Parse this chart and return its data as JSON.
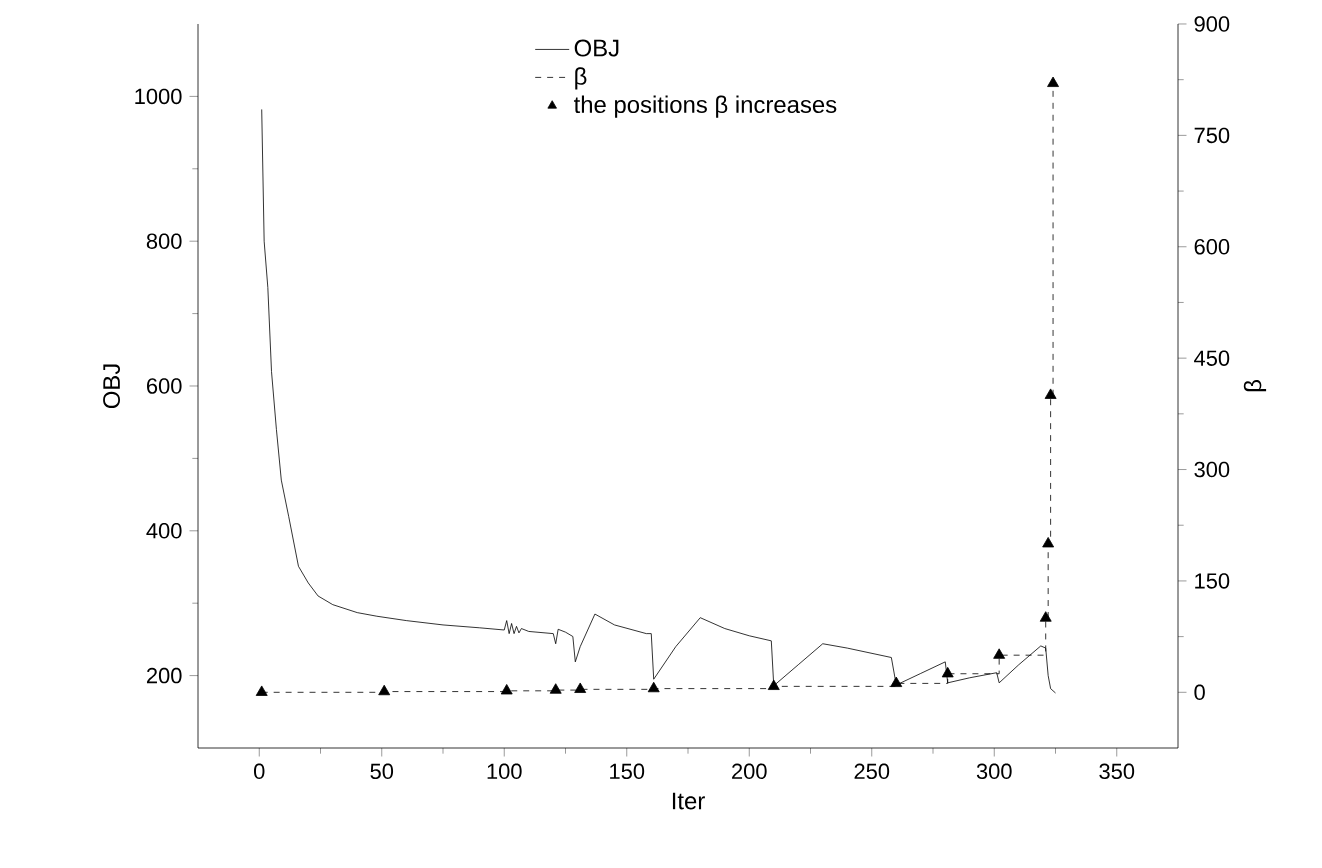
{
  "chart_data": {
    "type": "line",
    "xlabel": "Iter",
    "ylabel": "OBJ",
    "y2label": "β",
    "legend": "top",
    "xlim": [
      -25,
      375
    ],
    "xticks": [
      0,
      50,
      100,
      150,
      200,
      250,
      300,
      350
    ],
    "ylim": [
      100,
      1100
    ],
    "yticks": [
      200,
      400,
      600,
      800,
      1000
    ],
    "y2lim": [
      -75,
      900
    ],
    "y2ticks": [
      0,
      150,
      300,
      450,
      600,
      750,
      900
    ],
    "series": [
      {
        "name": "OBJ",
        "type": "line",
        "color": "#000000",
        "line_style": "solid",
        "marker": "none",
        "x": [
          1,
          2,
          3.5,
          5,
          7,
          9,
          12,
          16,
          20,
          24,
          30,
          40,
          48,
          60,
          75,
          90,
          100,
          101,
          102,
          103,
          104,
          105,
          106,
          107,
          110,
          120,
          121,
          122,
          125,
          128,
          129,
          131,
          137,
          145,
          158,
          160,
          161,
          170,
          180,
          190,
          200,
          209,
          210,
          220,
          230,
          240,
          258,
          260,
          270,
          280,
          281,
          290,
          301,
          302,
          310,
          319,
          321,
          322,
          323,
          325
        ],
        "values": [
          982,
          800,
          736,
          620,
          540,
          470,
          420,
          351,
          328,
          310,
          298,
          287,
          282,
          276,
          270,
          266,
          263,
          276,
          258,
          272,
          258,
          268,
          259,
          265,
          261,
          258,
          244,
          264,
          260,
          254,
          219,
          240,
          285,
          270,
          258,
          258,
          195,
          240,
          280,
          265,
          255,
          248,
          186,
          215,
          244,
          238,
          225,
          187,
          203,
          219,
          190,
          197,
          204,
          190,
          215,
          241,
          238,
          200,
          182,
          176
        ]
      },
      {
        "name": "β",
        "type": "step",
        "axis": "y2",
        "color": "#000000",
        "line_style": "dashed",
        "marker": "none",
        "x": [
          1,
          51,
          101,
          121,
          131,
          161,
          210,
          260,
          281,
          302,
          321,
          322,
          323,
          324
        ],
        "values": [
          0,
          1,
          2,
          3,
          4,
          5,
          8,
          12,
          25,
          50,
          100,
          200,
          400,
          820
        ]
      },
      {
        "name": "the positions β increases",
        "type": "scatter",
        "axis": "y2",
        "color": "#000000",
        "marker": "triangle",
        "x": [
          1,
          51,
          101,
          121,
          131,
          161,
          210,
          260,
          281,
          302,
          321,
          322,
          323,
          324
        ],
        "values": [
          0,
          1,
          2,
          3,
          4,
          5,
          8,
          12,
          25,
          50,
          100,
          200,
          400,
          820
        ]
      }
    ]
  }
}
